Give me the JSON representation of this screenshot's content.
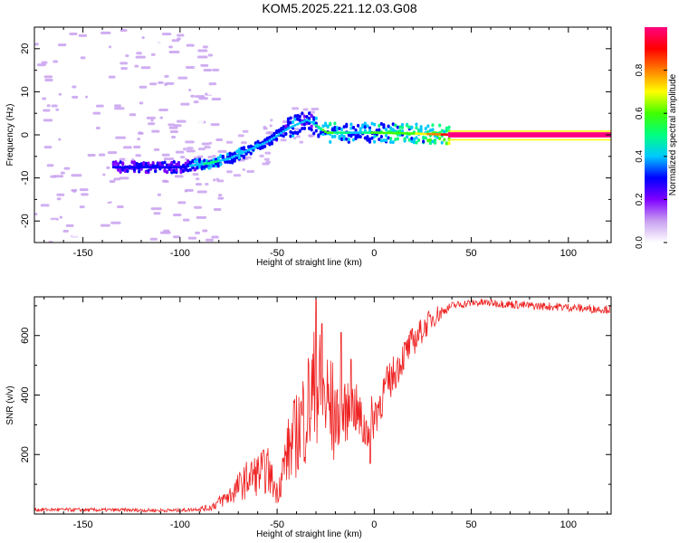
{
  "title": "KOM5.2025.221.12.03.G08",
  "chart_data": [
    {
      "type": "heatmap",
      "name": "spectrogram",
      "xlabel": "Height of straight line (km)",
      "ylabel": "Frequency (Hz)",
      "xlim": [
        -175,
        122
      ],
      "ylim": [
        -25,
        25
      ],
      "xticks": [
        -150,
        -100,
        -50,
        0,
        50,
        100
      ],
      "yticks": [
        -20,
        -10,
        0,
        10,
        20
      ],
      "colorbar": {
        "label": "Normalized spectral amplitude",
        "range": [
          0,
          1
        ],
        "ticks": [
          0.0,
          0.2,
          0.4,
          0.6,
          0.8
        ],
        "colors": [
          "#ffffff",
          "#c8a0f0",
          "#8000ff",
          "#0000ff",
          "#00c8ff",
          "#00ff80",
          "#40ff00",
          "#ffff00",
          "#ff8000",
          "#ff0000",
          "#ff0080"
        ]
      },
      "ridge": [
        {
          "x": -130,
          "f": -7.5,
          "a": 0.25
        },
        {
          "x": -100,
          "f": -7.5,
          "a": 0.3
        },
        {
          "x": -85,
          "f": -6.5,
          "a": 0.5
        },
        {
          "x": -75,
          "f": -5.5,
          "a": 0.4
        },
        {
          "x": -65,
          "f": -3.5,
          "a": 0.45
        },
        {
          "x": -55,
          "f": -1.5,
          "a": 0.35
        },
        {
          "x": -45,
          "f": 1.5,
          "a": 0.4
        },
        {
          "x": -35,
          "f": 3.5,
          "a": 0.35
        },
        {
          "x": -25,
          "f": 0.5,
          "a": 0.6
        },
        {
          "x": -10,
          "f": 0.5,
          "a": 0.4
        },
        {
          "x": 0,
          "f": 0.5,
          "a": 0.6
        },
        {
          "x": 20,
          "f": 0.3,
          "a": 0.65
        },
        {
          "x": 40,
          "f": 0.0,
          "a": 0.95
        },
        {
          "x": 122,
          "f": 0.0,
          "a": 0.95
        }
      ],
      "noise_region": {
        "x_range": [
          -175,
          -100
        ],
        "f_range": [
          -25,
          25
        ],
        "amplitude": [
          0.03,
          0.12
        ]
      }
    },
    {
      "type": "line",
      "name": "snr",
      "xlabel": "Height of straight line (km)",
      "ylabel": "SNR (v/v)",
      "xlim": [
        -175,
        122
      ],
      "ylim": [
        0,
        730
      ],
      "xticks": [
        -150,
        -100,
        -50,
        0,
        50,
        100
      ],
      "yticks": [
        200,
        400,
        600
      ],
      "color": "#ee2222",
      "trend": {
        "x": [
          -175,
          -100,
          -85,
          -75,
          -65,
          -55,
          -50,
          -45,
          -40,
          -35,
          -30,
          -25,
          -20,
          -15,
          -10,
          -5,
          0,
          5,
          10,
          15,
          20,
          25,
          30,
          40,
          50,
          60,
          70,
          80,
          90,
          100,
          110,
          122
        ],
        "y": [
          15,
          12,
          20,
          60,
          120,
          150,
          70,
          200,
          270,
          350,
          420,
          380,
          320,
          340,
          360,
          280,
          330,
          410,
          470,
          530,
          580,
          620,
          660,
          700,
          710,
          710,
          705,
          700,
          698,
          695,
          690,
          688
        ]
      },
      "spikes": [
        {
          "x": -57,
          "y": 215
        },
        {
          "x": -30,
          "y": 720
        },
        {
          "x": -27,
          "y": 640
        },
        {
          "x": -17,
          "y": 610
        },
        {
          "x": -12,
          "y": 520
        },
        {
          "x": -2,
          "y": 170
        }
      ]
    }
  ]
}
